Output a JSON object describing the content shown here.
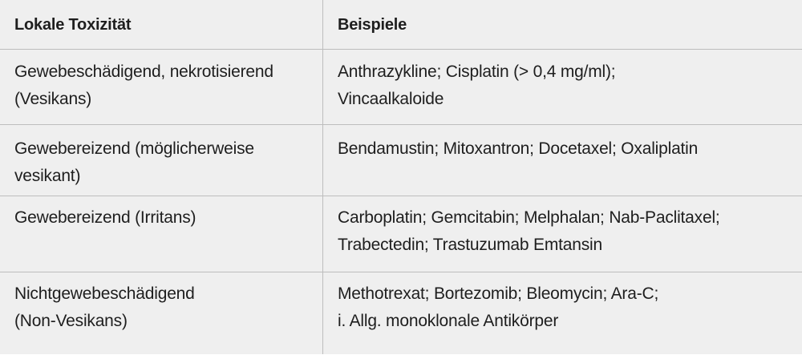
{
  "table": {
    "headers": [
      "Lokale Toxizität",
      "Beispiele"
    ],
    "rows": [
      {
        "toxicity": "Gewebeschädigend, nekrotisierend\n(Vesikans)",
        "examples": "Anthrazykline; Cisplatin (> 0,4 mg/ml);\nVincaalkaloide"
      },
      {
        "toxicity": "Gewebereizend (möglicherweise\nvesikant)",
        "examples": "Bendamustin; Mitoxantron; Docetaxel; Oxaliplatin"
      },
      {
        "toxicity": "Gewebereizend (Irritans)",
        "examples": "Carboplatin; Gemcitabin; Melphalan; Nab-Paclitaxel;\nTrabectedin; Trastuzumab Emtansin"
      },
      {
        "toxicity": "Nichtgewebeschädigend\n(Non-Vesikans)",
        "examples": "Methotrexat; Bortezomib; Bleomycin; Ara-C;\ni. Allg. monoklonale Antikörper"
      }
    ]
  },
  "colors": {
    "background": "#efefef",
    "grid": "#bdbdbd",
    "text": "#1e1e1e"
  }
}
